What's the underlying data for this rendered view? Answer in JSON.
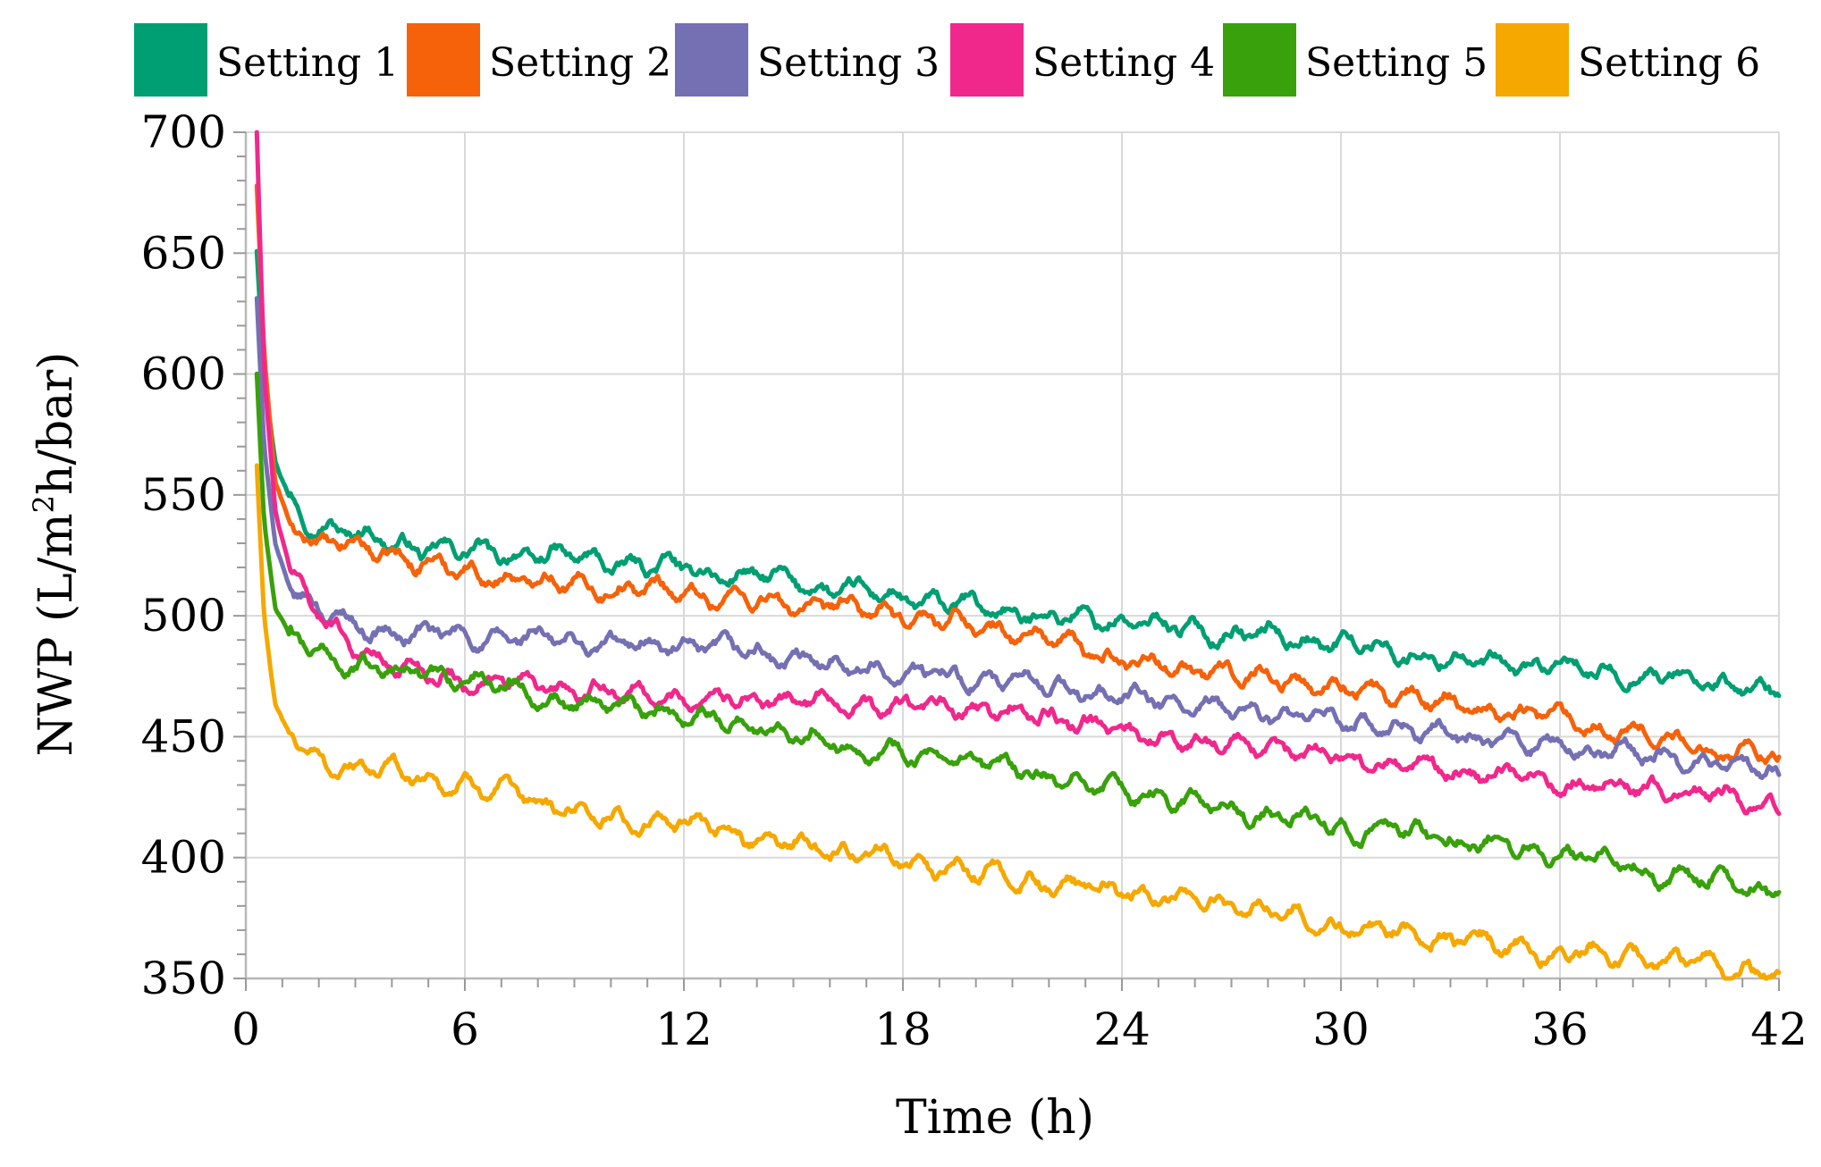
{
  "chart_data": {
    "type": "line",
    "title": "",
    "xlabel": "Time (h)",
    "ylabel_parts": {
      "pre": "NWP (L/m",
      "sup": "2",
      "post": "h/bar)"
    },
    "xlim": [
      0,
      42
    ],
    "ylim": [
      350,
      700
    ],
    "xticks": [
      0,
      6,
      12,
      18,
      24,
      30,
      36,
      42
    ],
    "yticks": [
      350,
      400,
      450,
      500,
      550,
      600,
      650,
      700
    ],
    "grid": true,
    "legend_position": "top",
    "series": [
      {
        "name": "Setting 1",
        "color": "#009E73",
        "x": [
          0.3,
          0.5,
          0.8,
          1.2,
          2,
          3,
          4,
          5,
          6,
          8,
          10,
          12,
          14,
          16,
          18,
          20,
          22,
          24,
          26,
          28,
          30,
          32,
          34,
          36,
          38,
          40,
          42
        ],
        "y": [
          650,
          600,
          565,
          548,
          538,
          534,
          530,
          528,
          526,
          525,
          522,
          519,
          516,
          511,
          507,
          503,
          500,
          498,
          494,
          492,
          489,
          484,
          480,
          478,
          476,
          473,
          467
        ]
      },
      {
        "name": "Setting 2",
        "color": "#F5620A",
        "x": [
          0.3,
          0.5,
          0.8,
          1.2,
          2,
          3,
          4,
          5,
          6,
          8,
          10,
          12,
          14,
          16,
          18,
          20,
          22,
          24,
          26,
          28,
          30,
          32,
          34,
          36,
          38,
          40,
          42
        ],
        "y": [
          678,
          610,
          555,
          538,
          530,
          528,
          525,
          522,
          518,
          515,
          512,
          510,
          506,
          503,
          500,
          496,
          490,
          482,
          478,
          475,
          470,
          466,
          462,
          458,
          452,
          446,
          442
        ]
      },
      {
        "name": "Setting 3",
        "color": "#7570B3",
        "x": [
          0.3,
          0.5,
          0.8,
          1.2,
          2,
          3,
          4,
          5,
          6,
          8,
          10,
          12,
          14,
          16,
          18,
          20,
          22,
          24,
          26,
          28,
          30,
          32,
          34,
          36,
          38,
          40,
          42
        ],
        "y": [
          632,
          570,
          530,
          512,
          502,
          496,
          493,
          492,
          491,
          490,
          488,
          487,
          484,
          480,
          477,
          474,
          471,
          466,
          462,
          459,
          456,
          452,
          449,
          446,
          443,
          439,
          435
        ]
      },
      {
        "name": "Setting 4",
        "color": "#F0288C",
        "x": [
          0.3,
          0.5,
          0.8,
          1.2,
          2,
          3,
          4,
          5,
          6,
          8,
          10,
          12,
          14,
          16,
          18,
          20,
          22,
          24,
          26,
          28,
          30,
          32,
          34,
          36,
          38,
          40,
          42
        ],
        "y": [
          700,
          600,
          545,
          520,
          500,
          488,
          480,
          476,
          474,
          470,
          468,
          466,
          466,
          464,
          462,
          461,
          458,
          452,
          448,
          445,
          442,
          438,
          435,
          432,
          429,
          426,
          422
        ]
      },
      {
        "name": "Setting 5",
        "color": "#38A10B",
        "x": [
          0.3,
          0.5,
          0.8,
          1.2,
          2,
          3,
          4,
          5,
          6,
          8,
          10,
          12,
          14,
          16,
          18,
          20,
          22,
          24,
          26,
          28,
          30,
          32,
          34,
          36,
          38,
          40,
          42
        ],
        "y": [
          600,
          540,
          505,
          490,
          483,
          480,
          478,
          476,
          475,
          468,
          463,
          459,
          455,
          449,
          443,
          438,
          433,
          428,
          422,
          417,
          413,
          410,
          405,
          401,
          396,
          391,
          386
        ]
      },
      {
        "name": "Setting 6",
        "color": "#F5A800",
        "x": [
          0.3,
          0.5,
          0.8,
          1.2,
          2,
          3,
          4,
          5,
          6,
          8,
          10,
          12,
          14,
          16,
          18,
          20,
          22,
          24,
          26,
          28,
          30,
          32,
          34,
          36,
          38,
          40,
          42
        ],
        "y": [
          563,
          500,
          462,
          450,
          440,
          437,
          435,
          433,
          430,
          423,
          416,
          413,
          409,
          404,
          399,
          393,
          389,
          386,
          382,
          378,
          372,
          368,
          364,
          361,
          359,
          356,
          352
        ]
      }
    ]
  }
}
